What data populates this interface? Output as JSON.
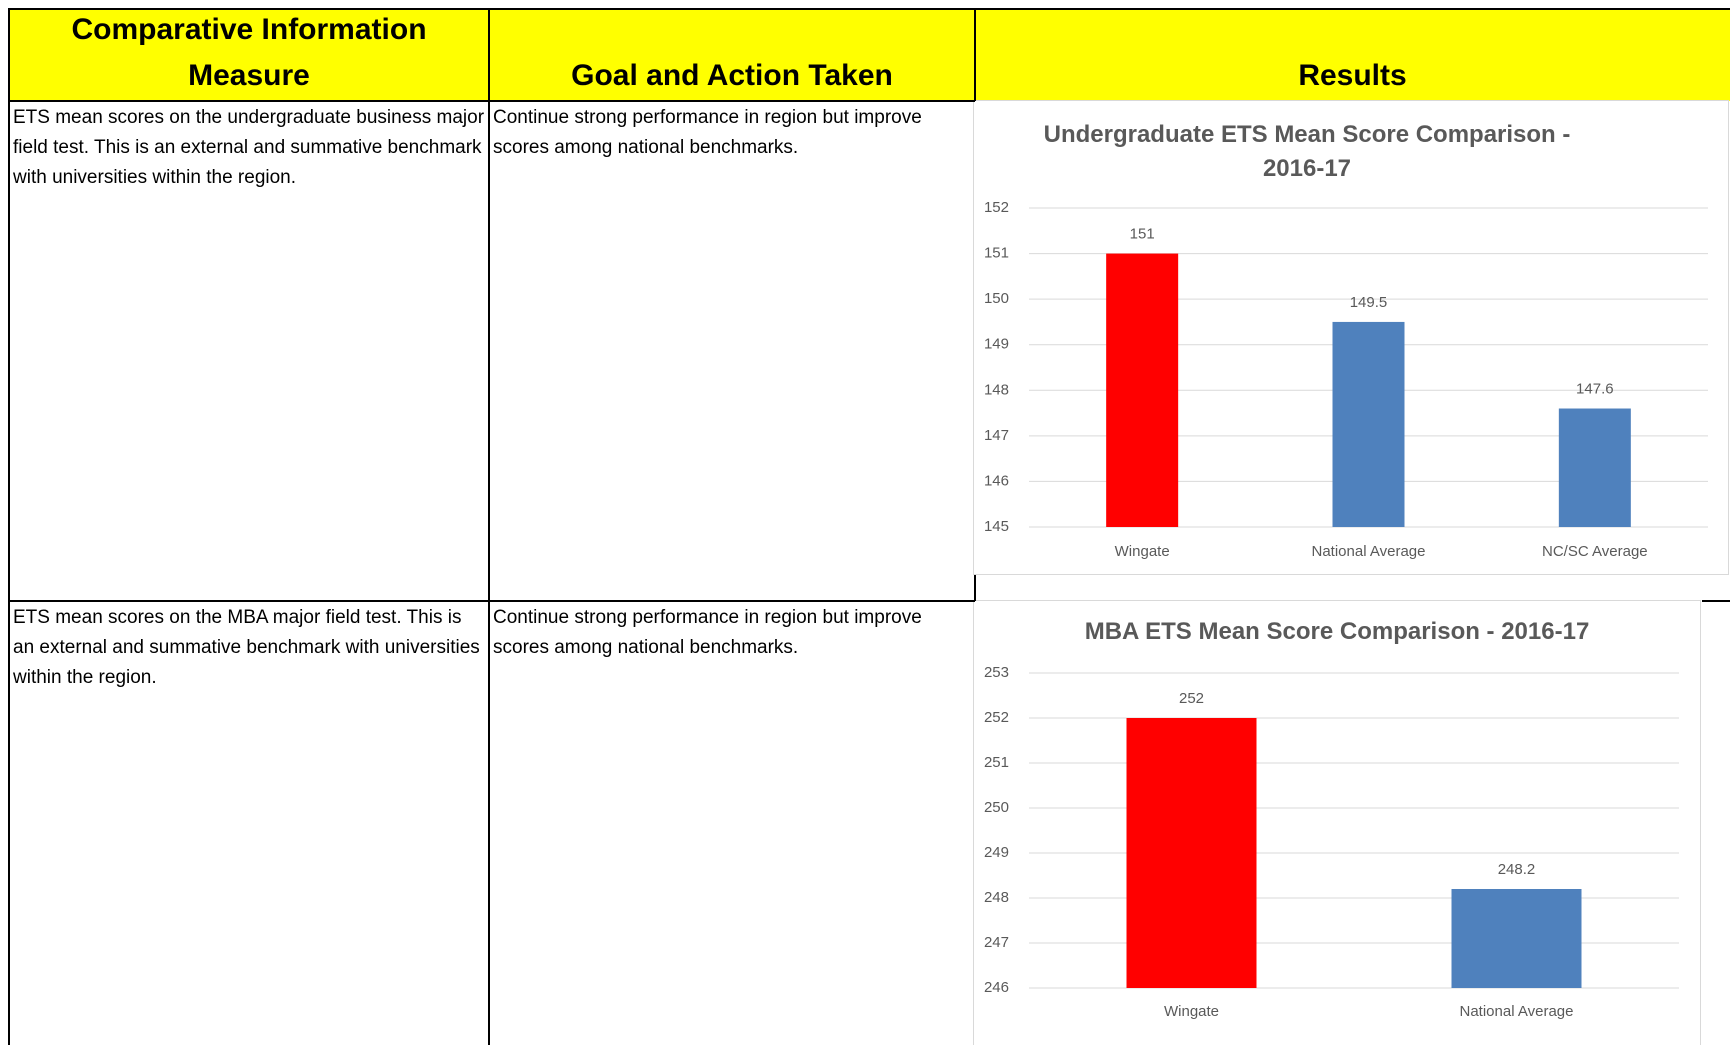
{
  "header": {
    "measure": "Comparative Information Measure",
    "goal": "Goal and Action Taken",
    "results": "Results"
  },
  "rows": [
    {
      "measure": "ETS mean scores on the undergraduate business major field test.  This is an external and summative benchmark with universities within the region.",
      "goal": "Continue strong performance in region but improve scores among national benchmarks.",
      "chart": {
        "type": "bar",
        "title": "Undergraduate ETS Mean Score Comparison - 2016-17",
        "categories": [
          "Wingate",
          "National Average",
          "NC/SC Average"
        ],
        "values": [
          151,
          149.5,
          147.6
        ],
        "colors": [
          "#ff0000",
          "#4f81bd",
          "#4f81bd"
        ],
        "ylim": [
          145,
          152
        ],
        "yticks": [
          145,
          146,
          147,
          148,
          149,
          150,
          151,
          152
        ],
        "grid": true
      }
    },
    {
      "measure": "ETS mean scores on the MBA major field test.  This is an external and summative benchmark with universities within the region.",
      "goal": "Continue strong performance in region but improve scores among national benchmarks.",
      "chart": {
        "type": "bar",
        "title": "MBA ETS Mean Score Comparison - 2016-17",
        "categories": [
          "Wingate",
          "National Average"
        ],
        "values": [
          252,
          248.2
        ],
        "colors": [
          "#ff0000",
          "#4f81bd"
        ],
        "ylim": [
          246,
          253
        ],
        "yticks": [
          246,
          247,
          248,
          249,
          250,
          251,
          252,
          253
        ],
        "grid": true
      }
    }
  ]
}
